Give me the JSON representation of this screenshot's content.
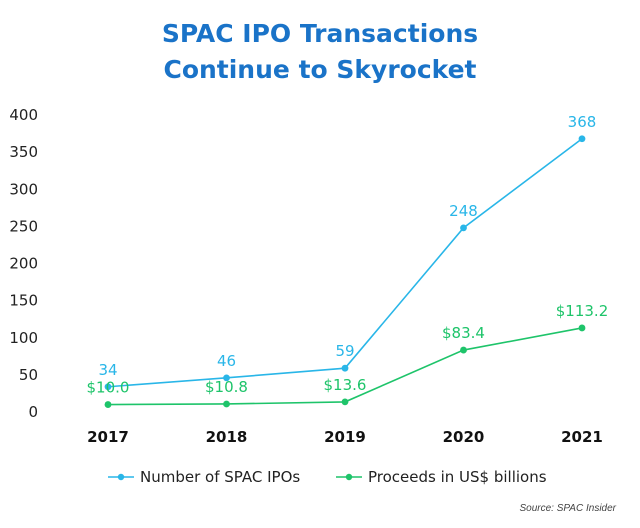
{
  "chart_data": {
    "type": "line",
    "title": [
      "SPAC IPO Transactions",
      "Continue to Skyrocket"
    ],
    "categories": [
      "2017",
      "2018",
      "2019",
      "2020",
      "2021"
    ],
    "ylim": [
      0,
      400
    ],
    "yticks": [
      "0",
      "50",
      "100",
      "150",
      "200",
      "250",
      "300",
      "350",
      "400"
    ],
    "grid": false,
    "legend_position": "bottom",
    "series": [
      {
        "name": "Number of SPAC IPOs",
        "values": [
          34,
          46,
          59,
          248,
          368
        ],
        "labels": [
          "34",
          "46",
          "59",
          "248",
          "368"
        ],
        "color": "#29b6e8"
      },
      {
        "name": "Proceeds in US$ billions",
        "values": [
          10.0,
          10.8,
          13.6,
          83.4,
          113.2
        ],
        "labels": [
          "$10.0",
          "$10.8",
          "$13.6",
          "$83.4",
          "$113.2"
        ],
        "color": "#1ec46a"
      }
    ],
    "source": "Source: SPAC Insider"
  }
}
